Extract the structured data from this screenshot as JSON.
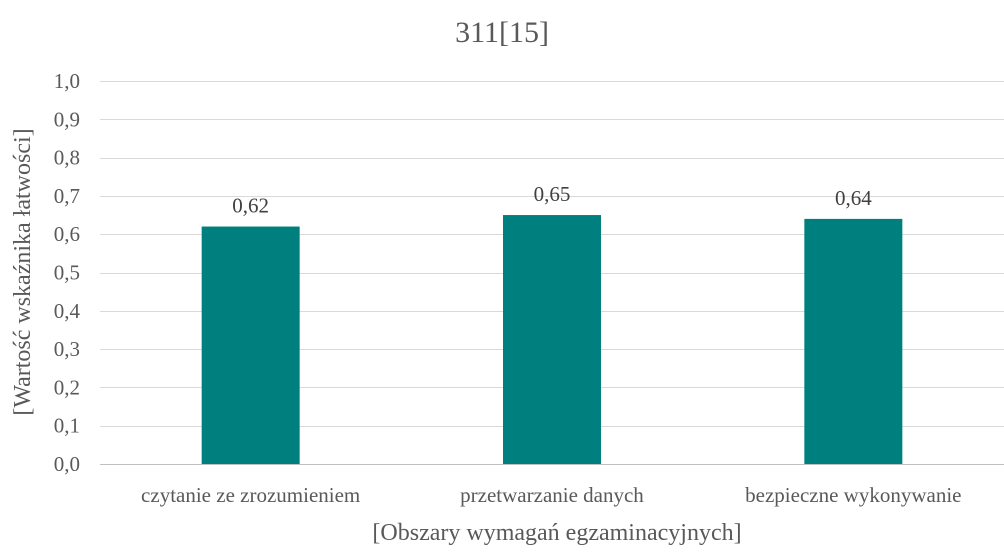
{
  "chart_data": {
    "type": "bar",
    "title": "311[15]",
    "xlabel": "[Obszary wymagań egzaminacyjnych]",
    "ylabel": "[Wartość wskaźnika łatwości]",
    "categories": [
      "czytanie ze zrozumieniem",
      "przetwarzanie danych",
      "bezpieczne wykonywanie"
    ],
    "values": [
      0.62,
      0.65,
      0.64
    ],
    "data_labels": [
      "0,62",
      "0,65",
      "0,64"
    ],
    "ylim": [
      0,
      1.0
    ],
    "yticks": [
      0.0,
      0.1,
      0.2,
      0.3,
      0.4,
      0.5,
      0.6,
      0.7,
      0.8,
      0.9,
      1.0
    ],
    "ytick_labels": [
      "0,0",
      "0,1",
      "0,2",
      "0,3",
      "0,4",
      "0,5",
      "0,6",
      "0,7",
      "0,8",
      "0,9",
      "1,0"
    ],
    "grid": true,
    "legend": "none",
    "bar_color": "#007f7f"
  }
}
